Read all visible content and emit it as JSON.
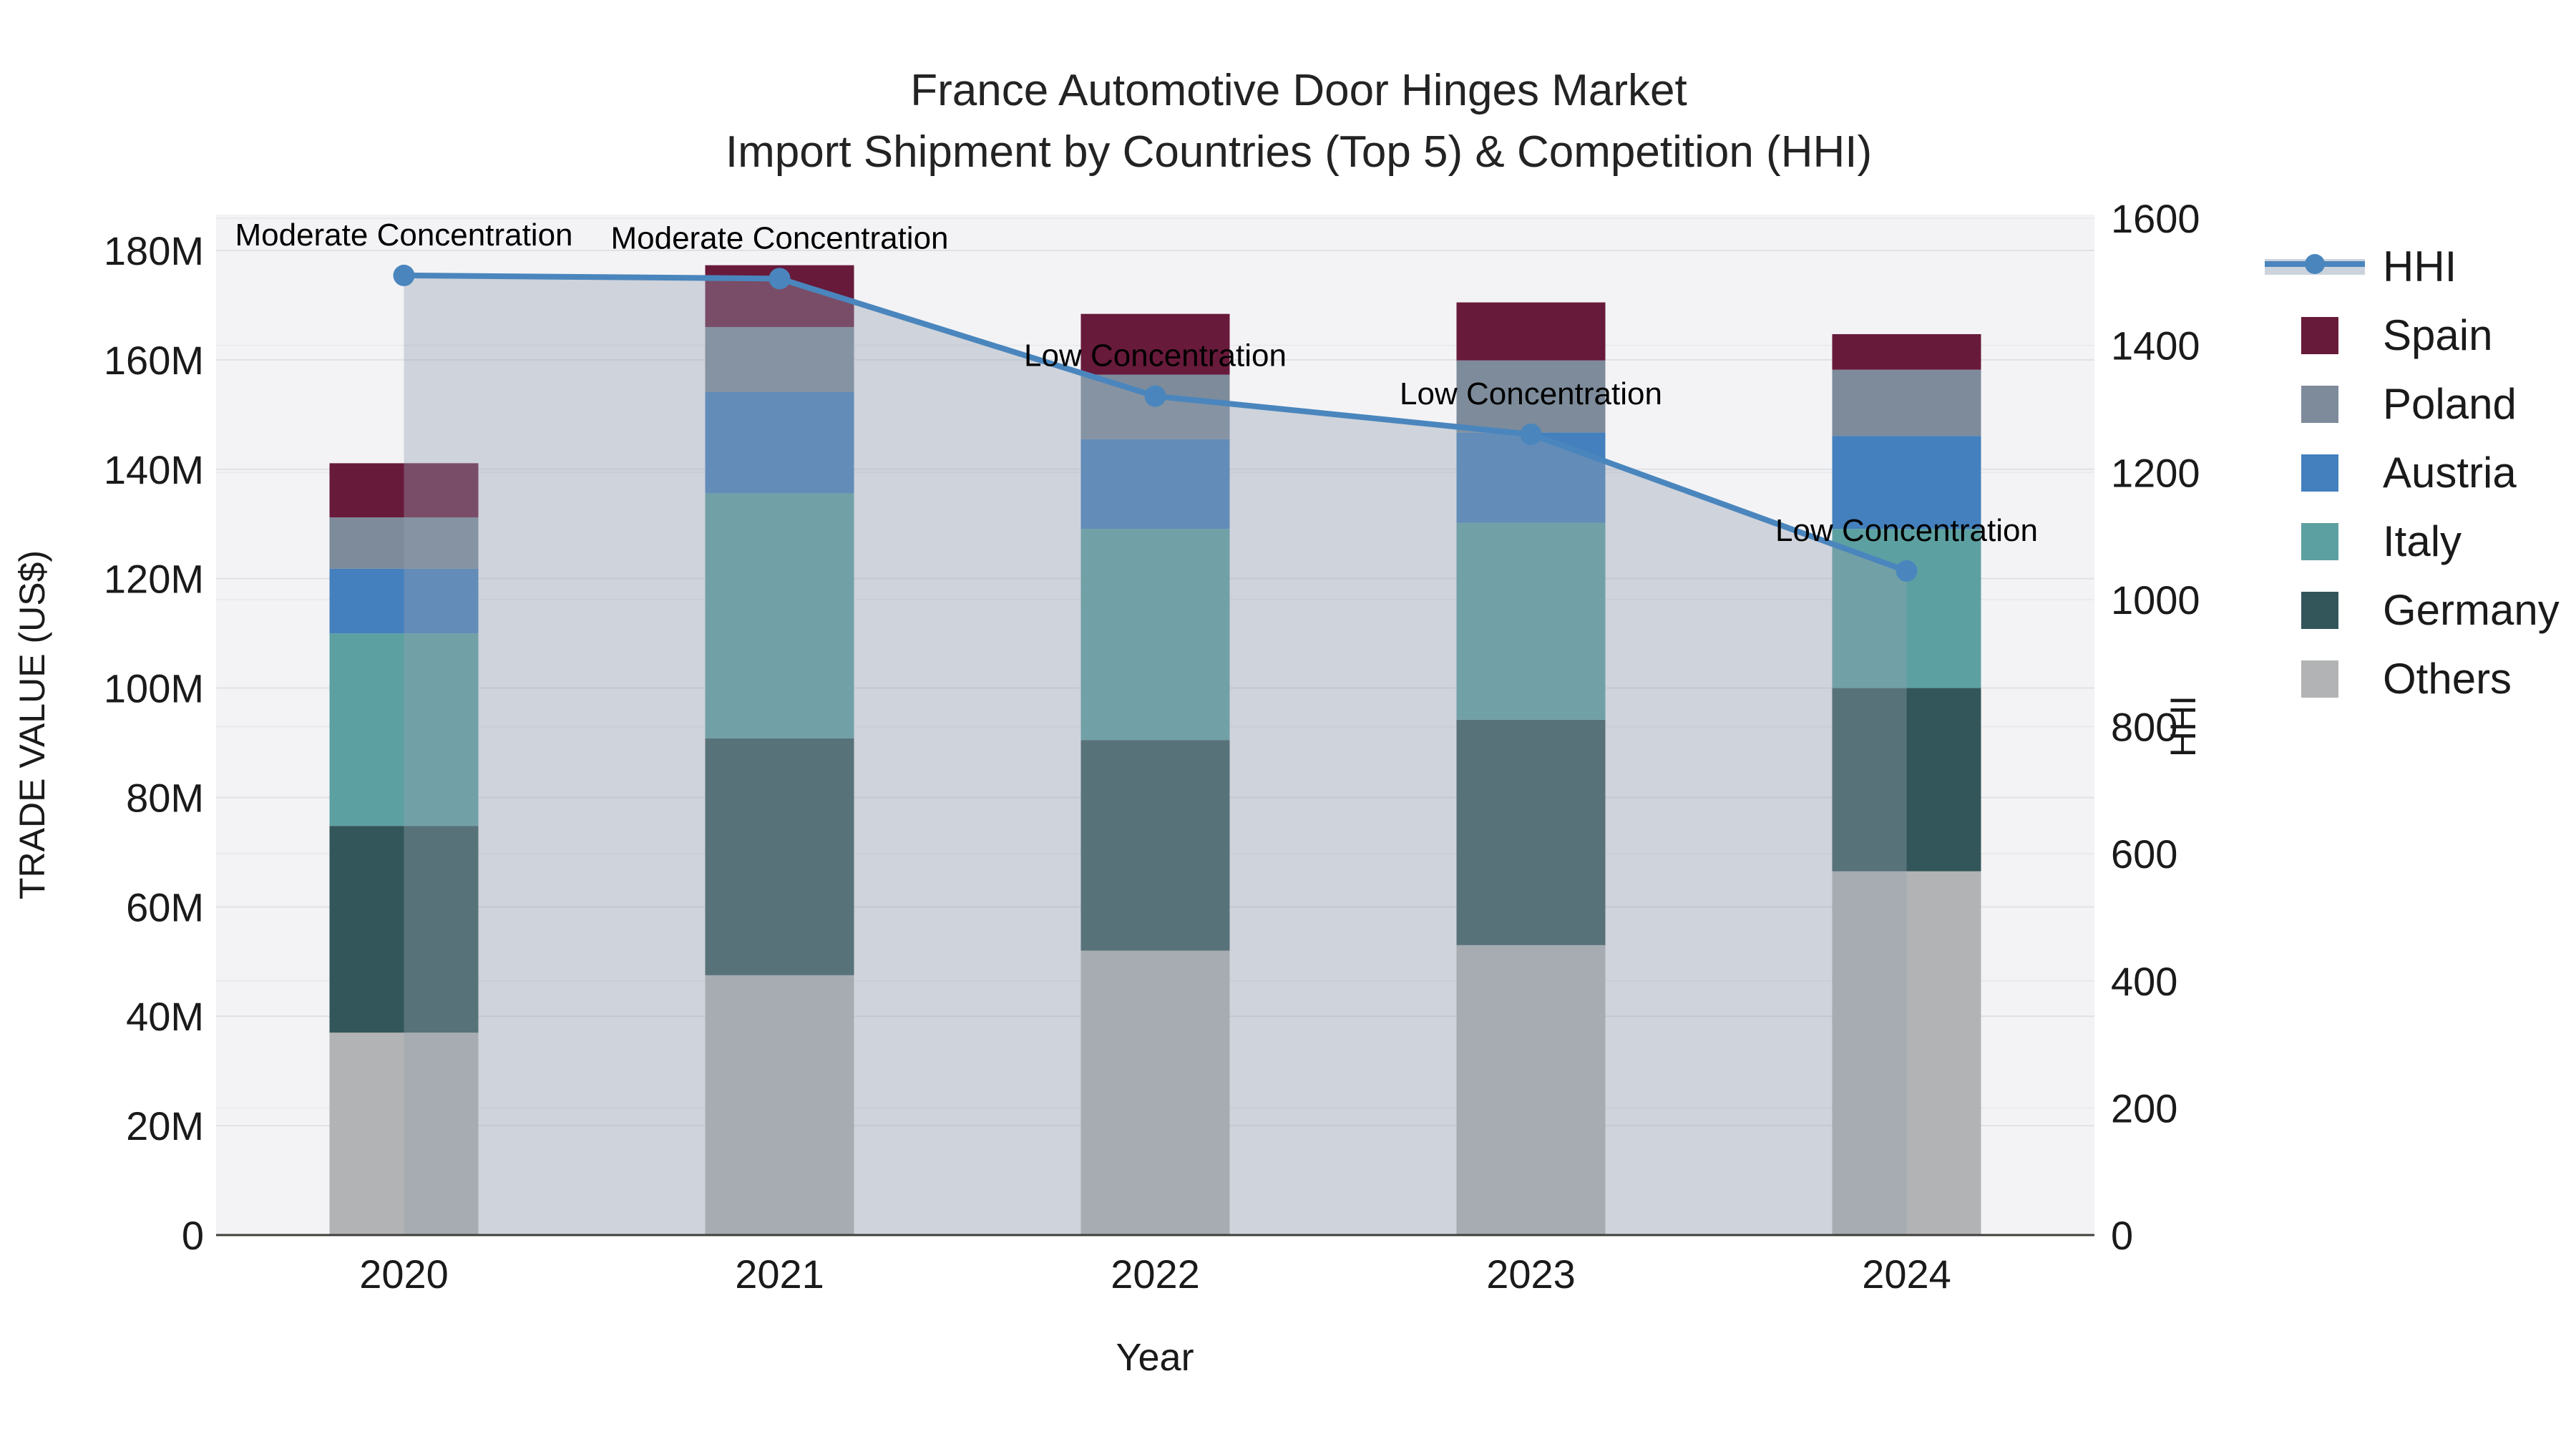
{
  "title": {
    "line1": "France Automotive Door Hinges Market",
    "line2": "Import Shipment by Countries (Top 5) & Competition (HHI)"
  },
  "axes": {
    "y_left": {
      "title": "TRADE VALUE (US$)",
      "tick_labels": [
        "0",
        "20M",
        "40M",
        "60M",
        "80M",
        "100M",
        "120M",
        "140M",
        "160M",
        "180M"
      ],
      "tick_values_millions": [
        0,
        20,
        40,
        60,
        80,
        100,
        120,
        140,
        160,
        180
      ]
    },
    "y_right": {
      "title": "HHI",
      "tick_labels": [
        "0",
        "200",
        "400",
        "600",
        "800",
        "1000",
        "1200",
        "1400",
        "1600"
      ],
      "tick_values": [
        0,
        200,
        400,
        600,
        800,
        1000,
        1200,
        1400,
        1600
      ]
    },
    "x": {
      "title": "Year",
      "tick_labels": [
        "2020",
        "2021",
        "2022",
        "2023",
        "2024"
      ]
    }
  },
  "legend": {
    "items": [
      {
        "label": "HHI",
        "type": "line",
        "color": "#4a86bd"
      },
      {
        "label": "Spain",
        "type": "box",
        "color": "#681a3b"
      },
      {
        "label": "Poland",
        "type": "box",
        "color": "#7d8b9b"
      },
      {
        "label": "Austria",
        "type": "box",
        "color": "#4480bd"
      },
      {
        "label": "Italy",
        "type": "box",
        "color": "#5da0a2"
      },
      {
        "label": "Germany",
        "type": "box",
        "color": "#33565a"
      },
      {
        "label": "Others",
        "type": "box",
        "color": "#b2b3b4"
      }
    ]
  },
  "colors": {
    "hhi_line": "#4a86bd",
    "hhi_fill_overlay": "rgba(150,160,177,0.38)",
    "plot_bg": "#f3f3f5",
    "grid_left": "#dfe1e5",
    "grid_right": "#e8eaed",
    "axis_line": "#3f3f3c"
  },
  "chart_data": {
    "type": "combo",
    "bar_mode": "stacked",
    "title": "France Automotive Door Hinges Market — Import Shipment by Countries (Top 5) & Competition (HHI)",
    "categories": [
      "2020",
      "2021",
      "2022",
      "2023",
      "2024"
    ],
    "value_unit": "Million US$",
    "series": [
      {
        "name": "Others",
        "color": "#b2b3b4",
        "values": [
          37.0,
          47.5,
          52.0,
          53.0,
          66.5
        ]
      },
      {
        "name": "Germany",
        "color": "#33565a",
        "values": [
          37.8,
          43.3,
          38.5,
          41.2,
          33.5
        ]
      },
      {
        "name": "Italy",
        "color": "#5da0a2",
        "values": [
          35.2,
          44.8,
          38.6,
          36.0,
          29.1
        ]
      },
      {
        "name": "Austria",
        "color": "#4480bd",
        "values": [
          11.8,
          18.5,
          16.4,
          16.5,
          17.0
        ]
      },
      {
        "name": "Poland",
        "color": "#7d8b9b",
        "values": [
          9.4,
          11.9,
          11.8,
          13.2,
          12.1
        ]
      },
      {
        "name": "Spain",
        "color": "#681a3b",
        "values": [
          9.9,
          11.3,
          11.1,
          10.6,
          6.5
        ]
      }
    ],
    "bar_totals_millions": [
      141.1,
      177.3,
      168.4,
      170.5,
      164.7
    ],
    "line": {
      "name": "HHI",
      "axis": "right",
      "values": [
        1510,
        1505,
        1320,
        1260,
        1045
      ]
    },
    "annotations": [
      "Moderate Concentration",
      "Moderate Concentration",
      "Low Concentration",
      "Low Concentration",
      "Low Concentration"
    ],
    "xlabel": "Year",
    "ylabel_left": "TRADE VALUE (US$)",
    "ylabel_right": "HHI",
    "ylim_left_millions": [
      0,
      186.5
    ],
    "ylim_right": [
      0,
      1600
    ],
    "grid": true,
    "legend_position": "right"
  }
}
